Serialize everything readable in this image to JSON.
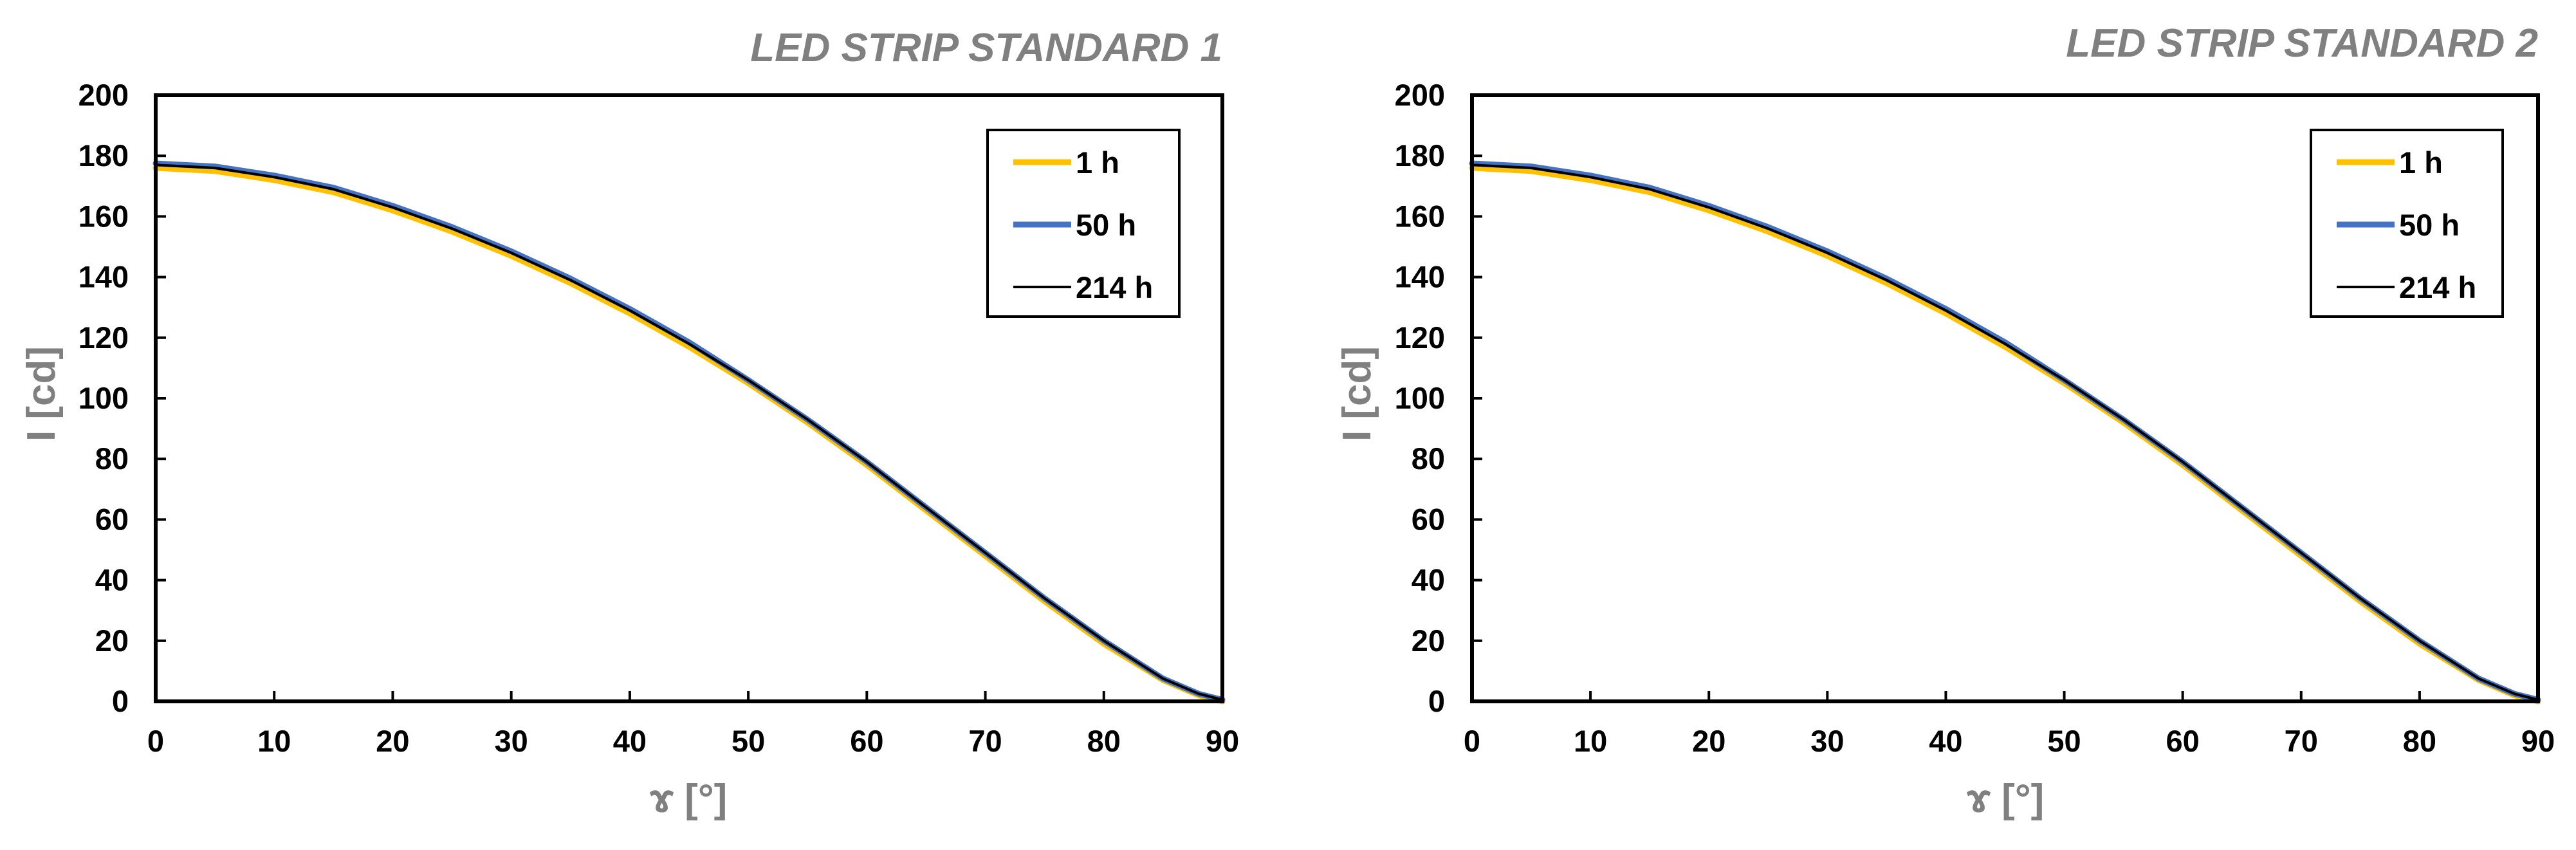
{
  "colors": {
    "series_1h": "#FFC000",
    "series_50h": "#4472C4",
    "series_214h": "#000000",
    "title_gray": "#808080"
  },
  "chart_data": [
    {
      "type": "line",
      "title": "LED STRIP STANDARD 1",
      "xlabel": "ɤ [°]",
      "ylabel": "I [cd]",
      "xlim": [
        0,
        90
      ],
      "ylim": [
        0,
        200
      ],
      "xticks": [
        0,
        10,
        20,
        30,
        40,
        50,
        60,
        70,
        80,
        90
      ],
      "yticks": [
        0,
        20,
        40,
        60,
        80,
        100,
        120,
        140,
        160,
        180,
        200
      ],
      "grid": false,
      "legend_position": "top-right",
      "x": [
        0,
        5,
        10,
        15,
        20,
        25,
        30,
        35,
        40,
        45,
        50,
        55,
        60,
        65,
        70,
        75,
        80,
        85,
        88,
        90
      ],
      "series": [
        {
          "name": "1 h",
          "values": [
            176,
            175,
            172,
            168,
            162,
            155,
            147,
            138,
            128,
            117,
            105,
            92,
            78,
            63,
            48,
            33,
            19,
            7,
            2,
            0
          ]
        },
        {
          "name": "50 h",
          "values": [
            177.5,
            176.5,
            173.5,
            169.5,
            163.5,
            156.5,
            148.5,
            139.5,
            129.5,
            118.5,
            106,
            93,
            79,
            64,
            49,
            34,
            20,
            7.5,
            2.5,
            0.5
          ]
        },
        {
          "name": "214 h",
          "values": [
            177,
            176,
            173,
            169,
            163,
            156,
            148,
            139,
            129,
            118,
            106,
            93,
            79,
            64,
            49,
            34,
            20,
            7.5,
            2.5,
            0.5
          ]
        }
      ]
    },
    {
      "type": "line",
      "title": "LED STRIP STANDARD 2",
      "xlabel": "ɤ [°]",
      "ylabel": "I [cd]",
      "xlim": [
        0,
        90
      ],
      "ylim": [
        0,
        200
      ],
      "xticks": [
        0,
        10,
        20,
        30,
        40,
        50,
        60,
        70,
        80,
        90
      ],
      "yticks": [
        0,
        20,
        40,
        60,
        80,
        100,
        120,
        140,
        160,
        180,
        200
      ],
      "grid": false,
      "legend_position": "top-right",
      "x": [
        0,
        5,
        10,
        15,
        20,
        25,
        30,
        35,
        40,
        45,
        50,
        55,
        60,
        65,
        70,
        75,
        80,
        85,
        88,
        90
      ],
      "series": [
        {
          "name": "1 h",
          "values": [
            176,
            175,
            172,
            168,
            162,
            155,
            147,
            138,
            128,
            117,
            105,
            92,
            78,
            63,
            48,
            33,
            19,
            7,
            2,
            0
          ]
        },
        {
          "name": "50 h",
          "values": [
            177.5,
            176.5,
            173.5,
            169.5,
            163.5,
            156.5,
            148.5,
            139.5,
            129.5,
            118.5,
            106,
            93,
            79,
            64,
            49,
            34,
            20,
            7.5,
            2.5,
            0.5
          ]
        },
        {
          "name": "214 h",
          "values": [
            177,
            176,
            173,
            169,
            163,
            156,
            148,
            139,
            129,
            118,
            106,
            93,
            79,
            64,
            49,
            34,
            20,
            7.5,
            2.5,
            0.5
          ]
        }
      ]
    }
  ]
}
